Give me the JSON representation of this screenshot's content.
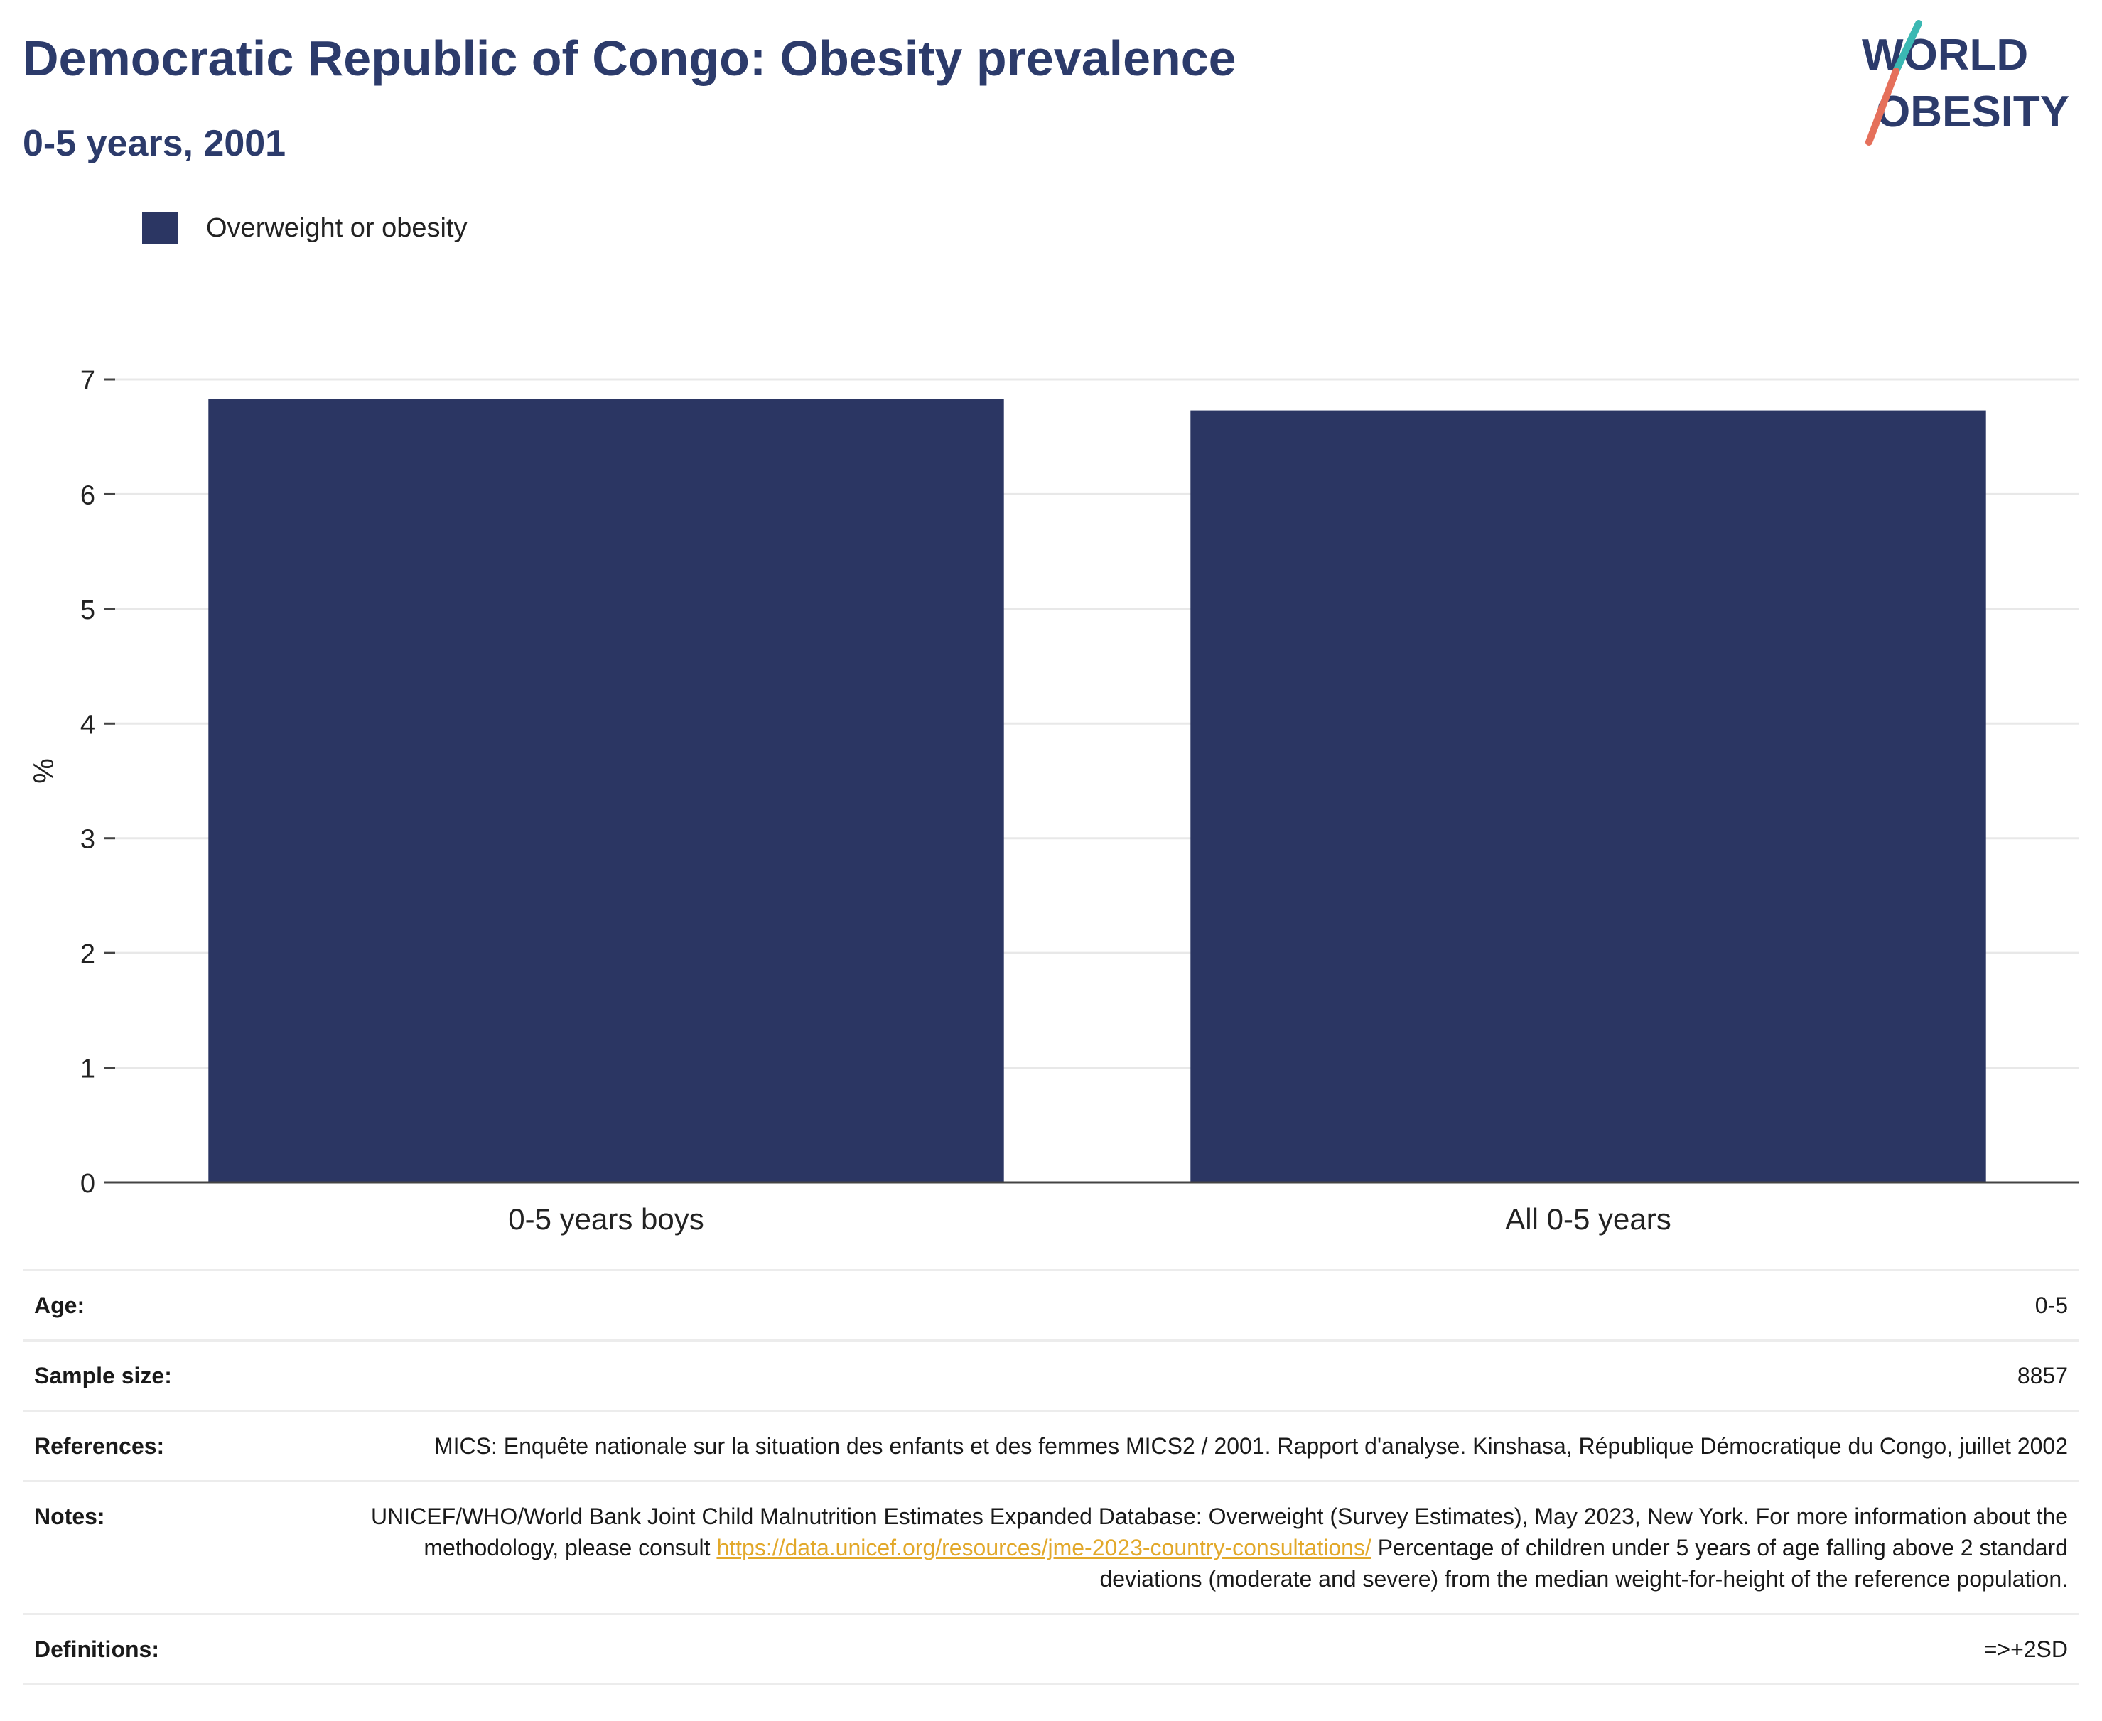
{
  "header": {
    "title": "Democratic Republic of Congo: Obesity prevalence",
    "subtitle": "0-5 years, 2001",
    "logo_line1": "WORLD",
    "logo_line2": "OBESITY"
  },
  "colors": {
    "bar": "#2b3663",
    "title": "#2c3b6b",
    "grid": "#e8e8e8",
    "axis": "#444444",
    "logo_teal": "#3bb8b3",
    "logo_coral": "#e5705b",
    "link": "#e2a82a"
  },
  "chart_data": {
    "type": "bar",
    "categories": [
      "0-5 years boys",
      "All 0-5 years"
    ],
    "series": [
      {
        "name": "Overweight or obesity",
        "values": [
          6.83,
          6.73
        ]
      }
    ],
    "ylabel": "%",
    "ylim": [
      0,
      7
    ],
    "yticks": [
      0,
      1,
      2,
      3,
      4,
      5,
      6,
      7
    ],
    "grid": true,
    "legend": "top-left"
  },
  "info": {
    "rows": [
      {
        "key": "Age:",
        "value": "0-5"
      },
      {
        "key": "Sample size:",
        "value": "8857"
      },
      {
        "key": "References:",
        "value": "MICS: Enquête nationale sur la situation des enfants et des femmes MICS2 / 2001. Rapport d'analyse. Kinshasa, République Démocratique du Congo, juillet 2002"
      },
      {
        "key": "Notes:",
        "value": "UNICEF/WHO/World Bank Joint Child Malnutrition Estimates Expanded Database: Overweight (Survey Estimates), May 2023, New York. For more information about the methodology, please consult",
        "link": "https://data.unicef.org/resources/jme-2023-country-consultations/",
        "value2": "Percentage of children under 5 years of age falling above 2 standard deviations (moderate and severe) from the median weight-for-height of the reference population."
      },
      {
        "key": "Definitions:",
        "value": "=>+2SD"
      }
    ]
  }
}
